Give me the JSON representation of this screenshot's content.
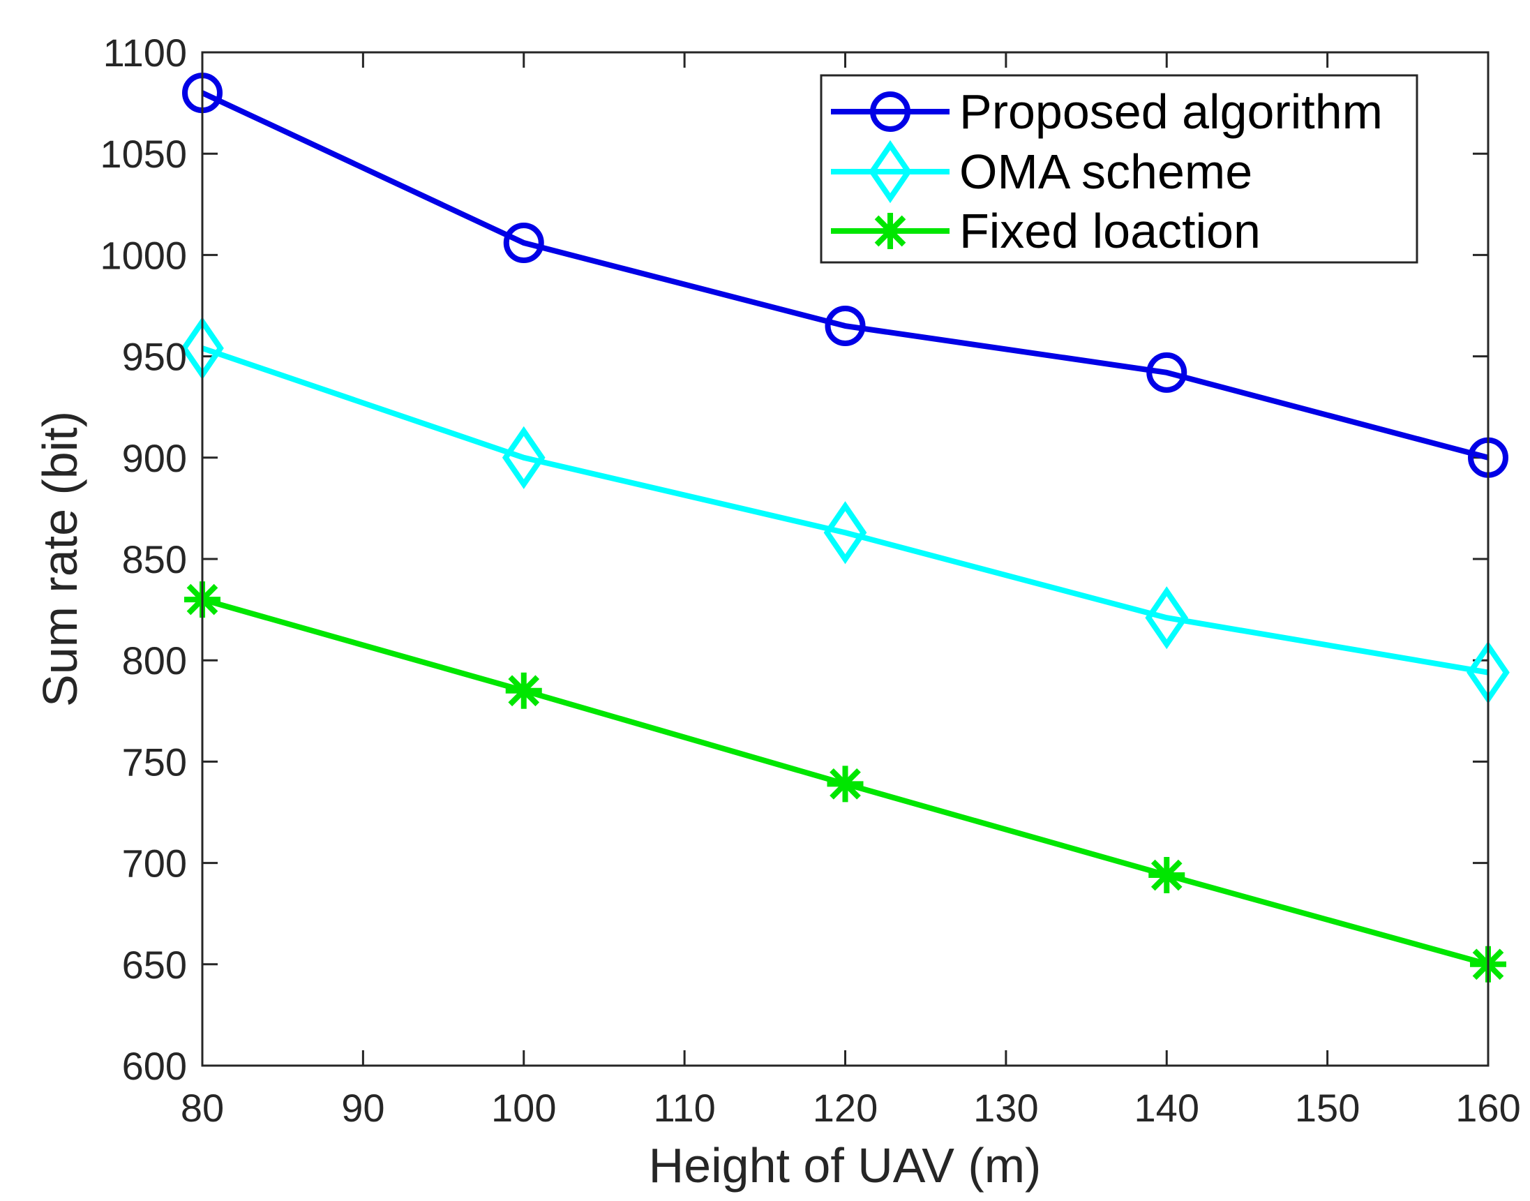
{
  "chart_data": {
    "type": "line",
    "title": "",
    "xlabel": "Height of UAV (m)",
    "ylabel": "Sum rate (bit)",
    "xlim": [
      80,
      160
    ],
    "ylim": [
      600,
      1100
    ],
    "xticks": [
      80,
      90,
      100,
      110,
      120,
      130,
      140,
      150,
      160
    ],
    "yticks": [
      600,
      650,
      700,
      750,
      800,
      850,
      900,
      950,
      1000,
      1050,
      1100
    ],
    "grid": false,
    "legend_position": "top-right",
    "x": [
      80,
      100,
      120,
      140,
      160
    ],
    "series": [
      {
        "name": "Proposed algorithm",
        "color": "#0000e6",
        "marker": "circle",
        "values": [
          1080,
          1006,
          965,
          942,
          900
        ]
      },
      {
        "name": "OMA scheme",
        "color": "#00ffff",
        "marker": "diamond",
        "values": [
          954,
          900,
          863,
          821,
          794
        ]
      },
      {
        "name": "Fixed loaction",
        "color": "#00e600",
        "marker": "asterisk",
        "values": [
          830,
          785,
          739,
          694,
          650
        ]
      }
    ]
  }
}
